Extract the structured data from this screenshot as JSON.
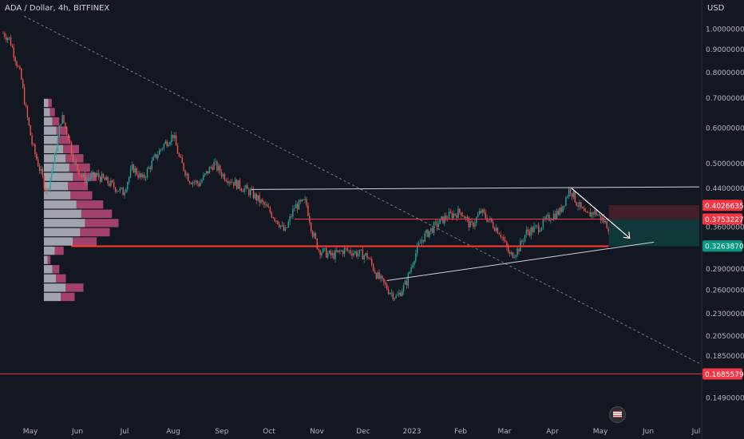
{
  "header": {
    "symbol": "ADA / Dollar, 4h, BITFINEX",
    "currency": "USD"
  },
  "colors": {
    "up": "#26a69a",
    "down": "#ef5350",
    "bg": "#131722",
    "line": "#ff3b30"
  },
  "chart_data": {
    "type": "candlestick",
    "y_scale": "log",
    "ylim": [
      0.148,
      1.08
    ],
    "y_ticks": [
      {
        "value": 1.0,
        "label": "1.00000000"
      },
      {
        "value": 0.9,
        "label": "0.90000000"
      },
      {
        "value": 0.8,
        "label": "0.80000000"
      },
      {
        "value": 0.7,
        "label": "0.70000000"
      },
      {
        "value": 0.6,
        "label": "0.60000000"
      },
      {
        "value": 0.5,
        "label": "0.50000000"
      },
      {
        "value": 0.44,
        "label": "0.44000000"
      },
      {
        "value": 0.36,
        "label": "0.36000000"
      },
      {
        "value": 0.29,
        "label": "0.29000000"
      },
      {
        "value": 0.26,
        "label": "0.26000000"
      },
      {
        "value": 0.23,
        "label": "0.23000000"
      },
      {
        "value": 0.205,
        "label": "0.20500000"
      },
      {
        "value": 0.185,
        "label": "0.18500000"
      },
      {
        "value": 0.149,
        "label": "0.14900000"
      }
    ],
    "x_ticks": [
      "May",
      "Jun",
      "Jul",
      "Aug",
      "Sep",
      "Oct",
      "Nov",
      "Dec",
      "2023",
      "Feb",
      "Mar",
      "Apr",
      "May",
      "Jun",
      "Jul"
    ],
    "x_start": "2022-05-01",
    "price_tags": [
      {
        "value": 0.40266354,
        "label": "0.40266354",
        "color": "#f23645"
      },
      {
        "value": 0.37532275,
        "label": "0.37532275",
        "color": "#f23645"
      },
      {
        "value": 0.32638709,
        "label": "0.32638709",
        "color": "#089981"
      },
      {
        "value": 0.16855793,
        "label": "0.16855793",
        "color": "#f23645"
      }
    ],
    "price_path": [
      [
        "2022-05-01",
        0.98
      ],
      [
        "2022-05-05",
        0.95
      ],
      [
        "2022-05-09",
        0.85
      ],
      [
        "2022-05-12",
        0.78
      ],
      [
        "2022-05-15",
        0.66
      ],
      [
        "2022-05-19",
        0.55
      ],
      [
        "2022-05-24",
        0.48
      ],
      [
        "2022-05-28",
        0.43
      ],
      [
        "2022-06-02",
        0.52
      ],
      [
        "2022-06-06",
        0.64
      ],
      [
        "2022-06-10",
        0.58
      ],
      [
        "2022-06-14",
        0.5
      ],
      [
        "2022-06-20",
        0.46
      ],
      [
        "2022-06-28",
        0.47
      ],
      [
        "2022-07-06",
        0.45
      ],
      [
        "2022-07-14",
        0.43
      ],
      [
        "2022-07-20",
        0.49
      ],
      [
        "2022-07-26",
        0.46
      ],
      [
        "2022-08-02",
        0.51
      ],
      [
        "2022-08-08",
        0.55
      ],
      [
        "2022-08-14",
        0.58
      ],
      [
        "2022-08-18",
        0.51
      ],
      [
        "2022-08-24",
        0.46
      ],
      [
        "2022-08-30",
        0.45
      ],
      [
        "2022-09-08",
        0.5
      ],
      [
        "2022-09-14",
        0.47
      ],
      [
        "2022-09-22",
        0.45
      ],
      [
        "2022-10-01",
        0.43
      ],
      [
        "2022-10-10",
        0.4
      ],
      [
        "2022-10-18",
        0.37
      ],
      [
        "2022-10-22",
        0.35
      ],
      [
        "2022-10-28",
        0.4
      ],
      [
        "2022-11-04",
        0.41
      ],
      [
        "2022-11-08",
        0.35
      ],
      [
        "2022-11-12",
        0.32
      ],
      [
        "2022-11-20",
        0.31
      ],
      [
        "2022-11-28",
        0.32
      ],
      [
        "2022-12-05",
        0.315
      ],
      [
        "2022-12-12",
        0.31
      ],
      [
        "2022-12-18",
        0.28
      ],
      [
        "2022-12-25",
        0.26
      ],
      [
        "2022-12-30",
        0.25
      ],
      [
        "2023-01-05",
        0.27
      ],
      [
        "2023-01-10",
        0.31
      ],
      [
        "2023-01-15",
        0.34
      ],
      [
        "2023-01-22",
        0.36
      ],
      [
        "2023-01-30",
        0.38
      ],
      [
        "2023-02-08",
        0.39
      ],
      [
        "2023-02-14",
        0.36
      ],
      [
        "2023-02-20",
        0.39
      ],
      [
        "2023-02-26",
        0.37
      ],
      [
        "2023-03-04",
        0.35
      ],
      [
        "2023-03-10",
        0.31
      ],
      [
        "2023-03-15",
        0.32
      ],
      [
        "2023-03-20",
        0.35
      ],
      [
        "2023-03-28",
        0.36
      ],
      [
        "2023-04-04",
        0.38
      ],
      [
        "2023-04-10",
        0.39
      ],
      [
        "2023-04-16",
        0.44
      ],
      [
        "2023-04-20",
        0.41
      ],
      [
        "2023-04-26",
        0.38
      ],
      [
        "2023-05-01",
        0.39
      ],
      [
        "2023-05-06",
        0.375
      ],
      [
        "2023-05-10",
        0.36
      ]
    ],
    "annotations": {
      "horizontal_line": 0.326,
      "bottom_line": 0.1686,
      "resistance_trend": [
        [
          "2022-10-01",
          0.437
        ],
        [
          "2023-07-05",
          0.443
        ]
      ],
      "support_trend": [
        [
          "2022-12-24",
          0.273
        ],
        [
          "2023-06-07",
          0.333
        ]
      ],
      "descending_trend": [
        [
          "2022-05-14",
          1.07
        ],
        [
          "2023-07-05",
          0.178
        ]
      ],
      "zone_red": [
        0.375,
        0.403
      ],
      "zone_green": [
        0.326,
        0.375
      ],
      "zone_start": "2023-05-10",
      "zone_end": "2023-07-05",
      "arrow": [
        [
          "2023-04-17",
          0.44
        ],
        [
          "2023-05-23",
          0.34
        ],
        [
          "2023-05-21",
          0.335
        ]
      ]
    },
    "volume_profile": {
      "top": 0.7,
      "bottom": 0.245,
      "rows": 22,
      "seed": [
        0.18,
        0.25,
        0.35,
        0.52,
        0.6,
        0.8,
        0.9,
        1.05,
        1.2,
        1.0,
        1.1,
        1.35,
        1.55,
        1.7,
        1.5,
        1.2,
        0.45,
        0.15,
        0.35,
        0.5,
        0.9,
        0.7
      ]
    }
  }
}
